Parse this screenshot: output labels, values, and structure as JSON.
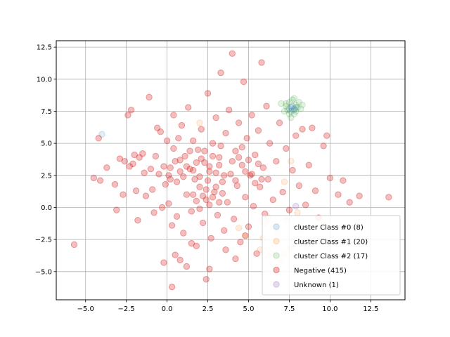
{
  "chart_data": {
    "type": "scatter",
    "title": "",
    "xlabel": "",
    "ylabel": "",
    "xlim": [
      -6.8,
      14.6
    ],
    "ylim": [
      -7.2,
      13.0
    ],
    "xticks": [
      -5.0,
      -2.5,
      0.0,
      2.5,
      5.0,
      7.5,
      10.0,
      12.5
    ],
    "xtick_labels": [
      "−5.0",
      "−2.5",
      "0.0",
      "2.5",
      "5.0",
      "7.5",
      "10.0",
      "12.5"
    ],
    "yticks": [
      -5.0,
      -2.5,
      0.0,
      2.5,
      5.0,
      7.5,
      10.0,
      12.5
    ],
    "ytick_labels": [
      "−5.0",
      "−2.5",
      "0.0",
      "2.5",
      "5.0",
      "7.5",
      "10.0",
      "12.5"
    ],
    "grid": true,
    "legend_position": "lower-right",
    "series": [
      {
        "name": "cluster Class #0 (8)",
        "color": "#1f77b4",
        "points": [
          [
            -4.0,
            5.7
          ],
          [
            7.6,
            7.8
          ],
          [
            7.8,
            7.6
          ],
          [
            7.7,
            7.9
          ],
          [
            7.5,
            7.7
          ],
          [
            7.9,
            7.8
          ],
          [
            7.6,
            7.5
          ],
          [
            7.8,
            7.7
          ]
        ]
      },
      {
        "name": "cluster Class #1 (20)",
        "color": "#ff7f0e",
        "points": [
          [
            2.0,
            6.6
          ],
          [
            7.6,
            3.6
          ],
          [
            7.2,
            2.0
          ],
          [
            8.0,
            -0.4
          ],
          [
            4.4,
            -1.6
          ],
          [
            7.8,
            -2.6
          ],
          [
            6.6,
            -2.8
          ],
          [
            5.7,
            -3.3
          ],
          [
            7.2,
            -3.6
          ],
          [
            6.8,
            -2.0
          ],
          [
            6.0,
            -1.2
          ],
          [
            8.2,
            -1.8
          ],
          [
            7.4,
            -1.0
          ],
          [
            6.4,
            -3.6
          ],
          [
            5.9,
            -2.4
          ],
          [
            8.6,
            -3.0
          ],
          [
            7.0,
            -4.2
          ],
          [
            6.2,
            -0.8
          ],
          [
            7.6,
            -3.2
          ],
          [
            4.8,
            -2.2
          ]
        ]
      },
      {
        "name": "cluster Class #2 (17)",
        "color": "#2ca02c",
        "points": [
          [
            7.0,
            8.1
          ],
          [
            7.3,
            7.9
          ],
          [
            7.5,
            8.2
          ],
          [
            7.8,
            8.5
          ],
          [
            7.7,
            8.4
          ],
          [
            7.9,
            7.5
          ],
          [
            8.0,
            7.8
          ],
          [
            8.2,
            7.7
          ],
          [
            7.5,
            7.3
          ],
          [
            7.4,
            7.6
          ],
          [
            8.3,
            8.0
          ],
          [
            7.2,
            7.5
          ],
          [
            7.8,
            7.3
          ],
          [
            8.1,
            8.2
          ],
          [
            7.6,
            7.0
          ],
          [
            7.9,
            8.0
          ],
          [
            7.3,
            8.1
          ]
        ]
      },
      {
        "name": "Negative (415)",
        "color": "#d62728",
        "points": [
          [
            -5.7,
            -2.9
          ],
          [
            -4.5,
            2.3
          ],
          [
            -4.2,
            5.4
          ],
          [
            -4.1,
            2.1
          ],
          [
            -3.7,
            3.1
          ],
          [
            -3.2,
            1.8
          ],
          [
            -3.1,
            -0.2
          ],
          [
            -2.9,
            3.8
          ],
          [
            -2.7,
            1.0
          ],
          [
            -2.6,
            3.6
          ],
          [
            -2.4,
            7.2
          ],
          [
            -2.3,
            3.2
          ],
          [
            -2.2,
            7.6
          ],
          [
            -2.1,
            3.4
          ],
          [
            -2.0,
            4.1
          ],
          [
            -1.9,
            1.3
          ],
          [
            -1.8,
            -1.0
          ],
          [
            -1.7,
            3.9
          ],
          [
            -1.5,
            4.2
          ],
          [
            -1.4,
            2.7
          ],
          [
            -1.3,
            0.9
          ],
          [
            -1.1,
            8.6
          ],
          [
            -1.0,
            3.0
          ],
          [
            -0.9,
            1.4
          ],
          [
            -0.8,
            -0.4
          ],
          [
            -0.7,
            4.0
          ],
          [
            -0.6,
            6.2
          ],
          [
            -0.5,
            2.6
          ],
          [
            -0.4,
            5.9
          ],
          [
            -0.3,
            0.0
          ],
          [
            -0.2,
            3.2
          ],
          [
            -0.1,
            1.8
          ],
          [
            0.0,
            5.2
          ],
          [
            0.1,
            0.3
          ],
          [
            0.2,
            2.2
          ],
          [
            0.3,
            -1.4
          ],
          [
            0.4,
            7.2
          ],
          [
            0.5,
            3.6
          ],
          [
            0.6,
            -0.7
          ],
          [
            0.7,
            5.4
          ],
          [
            0.8,
            2.8
          ],
          [
            0.9,
            6.4
          ],
          [
            1.0,
            -2.0
          ],
          [
            1.1,
            4.0
          ],
          [
            1.2,
            1.0
          ],
          [
            1.3,
            7.8
          ],
          [
            1.4,
            3.0
          ],
          [
            1.5,
            -0.3
          ],
          [
            1.6,
            5.2
          ],
          [
            1.7,
            2.2
          ],
          [
            1.8,
            -3.0
          ],
          [
            1.9,
            4.5
          ],
          [
            2.0,
            1.6
          ],
          [
            2.1,
            6.1
          ],
          [
            2.2,
            -1.2
          ],
          [
            2.3,
            3.5
          ],
          [
            2.4,
            0.6
          ],
          [
            2.5,
            8.9
          ],
          [
            2.6,
            2.8
          ],
          [
            2.7,
            -2.4
          ],
          [
            2.8,
            5.0
          ],
          [
            2.9,
            1.2
          ],
          [
            3.0,
            7.0
          ],
          [
            3.1,
            -0.6
          ],
          [
            3.2,
            3.9
          ],
          [
            3.3,
            10.5
          ],
          [
            3.4,
            2.0
          ],
          [
            3.5,
            -1.8
          ],
          [
            3.6,
            5.8
          ],
          [
            3.7,
            0.4
          ],
          [
            3.8,
            7.6
          ],
          [
            3.9,
            2.6
          ],
          [
            4.0,
            12.0
          ],
          [
            4.1,
            -0.9
          ],
          [
            4.2,
            4.4
          ],
          [
            4.3,
            1.7
          ],
          [
            4.4,
            6.6
          ],
          [
            4.5,
            -2.7
          ],
          [
            4.6,
            3.3
          ],
          [
            4.7,
            9.8
          ],
          [
            4.8,
            0.8
          ],
          [
            4.9,
            5.4
          ],
          [
            5.0,
            -1.5
          ],
          [
            5.1,
            2.5
          ],
          [
            5.2,
            7.2
          ],
          [
            5.3,
            0.1
          ],
          [
            5.4,
            4.1
          ],
          [
            5.5,
            -3.6
          ],
          [
            5.6,
            6.0
          ],
          [
            5.7,
            1.6
          ],
          [
            5.8,
            11.3
          ],
          [
            5.9,
            3.1
          ],
          [
            6.0,
            -0.5
          ],
          [
            6.1,
            7.9
          ],
          [
            6.2,
            2.2
          ],
          [
            6.3,
            5.0
          ],
          [
            6.5,
            0.6
          ],
          [
            6.7,
            3.6
          ],
          [
            6.9,
            6.6
          ],
          [
            7.1,
            1.2
          ],
          [
            7.3,
            4.6
          ],
          [
            7.5,
            -0.2
          ],
          [
            7.7,
            2.9
          ],
          [
            7.9,
            5.6
          ],
          [
            8.1,
            1.7
          ],
          [
            8.3,
            6.1
          ],
          [
            8.5,
            0.2
          ],
          [
            8.7,
            3.3
          ],
          [
            8.9,
            6.2
          ],
          [
            9.1,
            1.3
          ],
          [
            9.3,
            -0.8
          ],
          [
            9.6,
            4.8
          ],
          [
            9.8,
            5.6
          ],
          [
            10.0,
            2.3
          ],
          [
            10.5,
            1.0
          ],
          [
            10.8,
            2.1
          ],
          [
            11.2,
            0.4
          ],
          [
            11.8,
            0.9
          ],
          [
            13.6,
            0.8
          ],
          [
            -0.2,
            -4.3
          ],
          [
            0.3,
            -6.2
          ],
          [
            0.5,
            -3.7
          ],
          [
            1.2,
            -4.6
          ],
          [
            2.4,
            -5.6
          ],
          [
            2.6,
            -4.8
          ],
          [
            3.6,
            -3.3
          ],
          [
            4.2,
            -4.0
          ],
          [
            4.8,
            -2.2
          ],
          [
            1.5,
            -2.8
          ],
          [
            0.8,
            -4.1
          ],
          [
            2.0,
            2.4
          ],
          [
            2.1,
            3.8
          ],
          [
            2.3,
            4.4
          ],
          [
            2.5,
            2.1
          ],
          [
            2.6,
            3.2
          ],
          [
            2.8,
            4.0
          ],
          [
            3.0,
            2.7
          ],
          [
            3.2,
            3.3
          ],
          [
            3.3,
            4.8
          ],
          [
            3.5,
            2.5
          ],
          [
            1.0,
            2.4
          ],
          [
            1.2,
            3.2
          ],
          [
            1.4,
            4.4
          ],
          [
            1.6,
            2.9
          ],
          [
            1.8,
            3.5
          ],
          [
            0.6,
            2.0
          ],
          [
            0.8,
            3.7
          ],
          [
            0.4,
            4.6
          ],
          [
            0.2,
            3.1
          ],
          [
            0.1,
            2.5
          ],
          [
            4.0,
            3.6
          ],
          [
            4.2,
            2.1
          ],
          [
            4.4,
            3.9
          ],
          [
            4.6,
            4.7
          ],
          [
            4.8,
            2.8
          ],
          [
            5.0,
            3.7
          ],
          [
            5.2,
            2.6
          ],
          [
            5.4,
            1.9
          ],
          [
            5.6,
            3.4
          ],
          [
            5.8,
            2.2
          ],
          [
            1.6,
            1.0
          ],
          [
            1.8,
            0.5
          ],
          [
            2.0,
            -0.1
          ],
          [
            2.2,
            0.9
          ],
          [
            2.4,
            1.4
          ],
          [
            2.6,
            0.2
          ],
          [
            2.8,
            0.8
          ],
          [
            3.0,
            1.6
          ],
          [
            3.2,
            0.4
          ],
          [
            3.4,
            1.1
          ]
        ]
      },
      {
        "name": "Unknown (1)",
        "color": "#9467bd",
        "points": [
          [
            7.9,
            0.1
          ]
        ]
      }
    ]
  }
}
